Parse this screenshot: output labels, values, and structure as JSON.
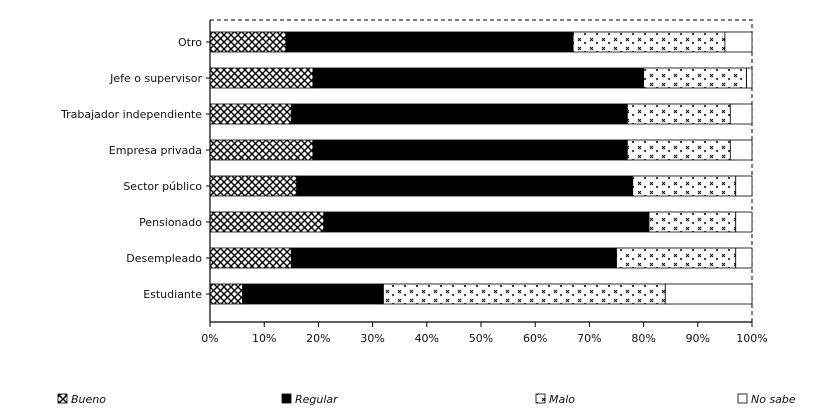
{
  "chart_data": {
    "type": "bar",
    "orientation": "horizontal",
    "stacked": true,
    "percent_stacked": true,
    "categories": [
      "Otro",
      "Jefe o supervisor",
      "Trabajador independiente",
      "Empresa privada",
      "Sector público",
      "Pensionado",
      "Desempleado",
      "Estudiante"
    ],
    "series": [
      {
        "name": "Bueno",
        "pattern": "dense-x",
        "values": [
          14,
          19,
          15,
          19,
          16,
          21,
          15,
          6
        ]
      },
      {
        "name": "Regular",
        "pattern": "solid",
        "values": [
          53,
          61,
          62,
          58,
          62,
          60,
          60,
          26
        ]
      },
      {
        "name": "Malo",
        "pattern": "sparse-x",
        "values": [
          28,
          19,
          19,
          19,
          19,
          16,
          22,
          52
        ]
      },
      {
        "name": "No sabe",
        "pattern": "white",
        "values": [
          5,
          1,
          4,
          4,
          3,
          3,
          3,
          16
        ]
      }
    ],
    "x_ticks": [
      "0%",
      "10%",
      "20%",
      "30%",
      "40%",
      "50%",
      "60%",
      "70%",
      "80%",
      "90%",
      "100%"
    ],
    "xlim": [
      0,
      100
    ],
    "legend_position": "bottom",
    "grid": false,
    "colors": {
      "solid": "#000000",
      "background": "#ffffff"
    }
  }
}
